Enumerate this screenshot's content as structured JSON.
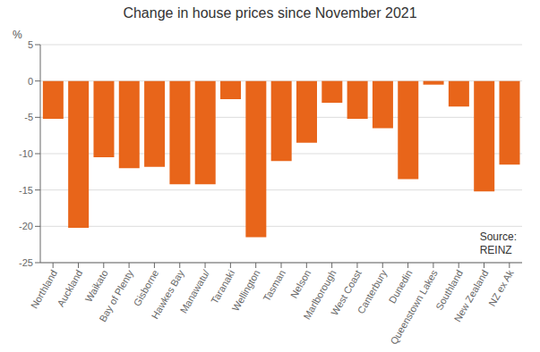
{
  "chart_data": {
    "type": "bar",
    "title": "Change in house prices since November 2021",
    "categories": [
      "Northland",
      "Auckland",
      "Waikato",
      "Bay of Plenty",
      "Gisborne",
      "Hawkes Bay",
      "Manawatu/",
      "Taranaki",
      "Wellington",
      "Tasman",
      "Nelson",
      "Marlborough",
      "West Coast",
      "Canterbury",
      "Dunedin",
      "Queenstown Lakes",
      "Southland",
      "New Zealand",
      "NZ ex Ak"
    ],
    "values": [
      -5.2,
      -20.2,
      -10.5,
      -12.0,
      -11.8,
      -14.2,
      -14.2,
      -2.5,
      -21.5,
      -11.0,
      -8.5,
      -3.0,
      -5.2,
      -6.5,
      -13.5,
      -0.5,
      -3.5,
      -15.2,
      -11.5
    ],
    "color": "#E8651A",
    "ylim": [
      -25,
      5
    ],
    "yticks": [
      -25,
      -20,
      -15,
      -10,
      -5,
      0,
      5
    ],
    "grid": true,
    "annotations": [
      "%",
      "Source:\nREINZ"
    ]
  }
}
